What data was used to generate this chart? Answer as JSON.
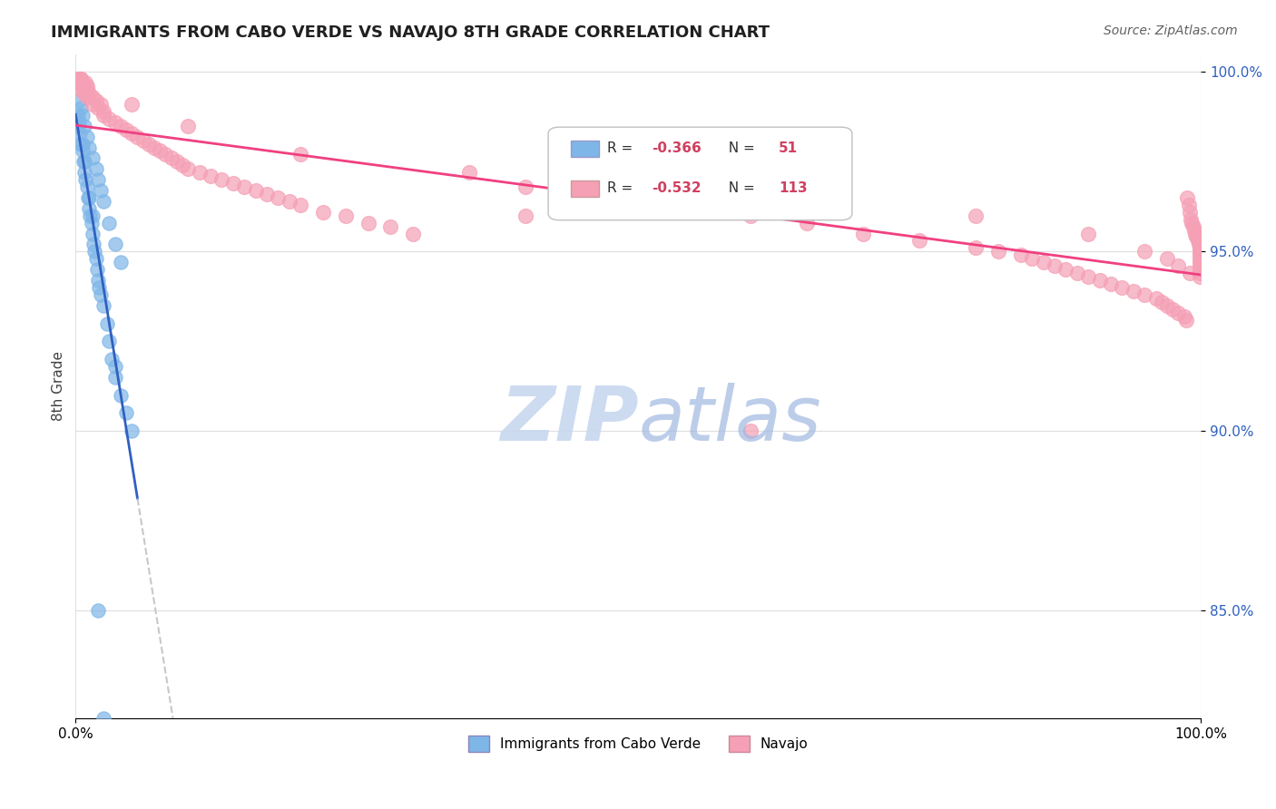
{
  "title": "IMMIGRANTS FROM CABO VERDE VS NAVAJO 8TH GRADE CORRELATION CHART",
  "source": "Source: ZipAtlas.com",
  "xlabel": "",
  "ylabel": "8th Grade",
  "xmin": 0.0,
  "xmax": 1.0,
  "ymin": 0.82,
  "ymax": 1.005,
  "yticks": [
    0.85,
    0.9,
    0.95,
    1.0
  ],
  "ytick_labels": [
    "85.0%",
    "90.0%",
    "95.0%",
    "100.0%"
  ],
  "xtick_labels": [
    "0.0%",
    "100.0%"
  ],
  "legend_r1": "R = -0.366",
  "legend_n1": "N =  51",
  "legend_r2": "R = -0.532",
  "legend_n2": "N = 113",
  "color_blue": "#7EB6E8",
  "color_pink": "#F5A0B5",
  "line_blue": "#3060C0",
  "line_pink": "#F04080",
  "line_dash": "#C8C8C8",
  "watermark": "ZIPatlas",
  "watermark_color": "#C8D8F0",
  "cabo_verde_x": [
    0.001,
    0.002,
    0.003,
    0.004,
    0.005,
    0.006,
    0.007,
    0.008,
    0.009,
    0.01,
    0.011,
    0.012,
    0.013,
    0.014,
    0.015,
    0.016,
    0.017,
    0.018,
    0.019,
    0.02,
    0.021,
    0.022,
    0.025,
    0.028,
    0.03,
    0.032,
    0.035,
    0.04,
    0.045,
    0.05,
    0.003,
    0.005,
    0.006,
    0.008,
    0.01,
    0.012,
    0.015,
    0.018,
    0.02,
    0.022,
    0.025,
    0.03,
    0.035,
    0.04,
    0.015,
    0.012,
    0.008,
    0.006,
    0.035,
    0.02,
    0.025
  ],
  "cabo_verde_y": [
    0.985,
    0.988,
    0.986,
    0.983,
    0.98,
    0.978,
    0.975,
    0.972,
    0.97,
    0.968,
    0.965,
    0.962,
    0.96,
    0.958,
    0.955,
    0.952,
    0.95,
    0.948,
    0.945,
    0.942,
    0.94,
    0.938,
    0.935,
    0.93,
    0.925,
    0.92,
    0.915,
    0.91,
    0.905,
    0.9,
    0.992,
    0.99,
    0.988,
    0.985,
    0.982,
    0.979,
    0.976,
    0.973,
    0.97,
    0.967,
    0.964,
    0.958,
    0.952,
    0.947,
    0.96,
    0.965,
    0.975,
    0.98,
    0.918,
    0.85,
    0.82
  ],
  "navajo_x": [
    0.001,
    0.002,
    0.003,
    0.003,
    0.005,
    0.005,
    0.006,
    0.007,
    0.008,
    0.009,
    0.01,
    0.01,
    0.012,
    0.015,
    0.015,
    0.018,
    0.02,
    0.022,
    0.025,
    0.025,
    0.03,
    0.035,
    0.04,
    0.045,
    0.05,
    0.055,
    0.06,
    0.065,
    0.07,
    0.075,
    0.08,
    0.085,
    0.09,
    0.095,
    0.1,
    0.11,
    0.12,
    0.13,
    0.14,
    0.15,
    0.16,
    0.17,
    0.18,
    0.19,
    0.2,
    0.22,
    0.24,
    0.26,
    0.28,
    0.3,
    0.35,
    0.4,
    0.45,
    0.5,
    0.55,
    0.6,
    0.65,
    0.7,
    0.75,
    0.8,
    0.82,
    0.84,
    0.85,
    0.86,
    0.87,
    0.88,
    0.89,
    0.9,
    0.91,
    0.92,
    0.93,
    0.94,
    0.95,
    0.96,
    0.965,
    0.97,
    0.975,
    0.98,
    0.985,
    0.987,
    0.988,
    0.989,
    0.99,
    0.991,
    0.992,
    0.993,
    0.994,
    0.995,
    0.996,
    0.997,
    0.998,
    0.999,
    0.999,
    0.999,
    0.999,
    0.999,
    0.999,
    0.999,
    0.999,
    0.999,
    0.005,
    0.01,
    0.05,
    0.1,
    0.2,
    0.4,
    0.6,
    0.8,
    0.9,
    0.95,
    0.97,
    0.98,
    0.99
  ],
  "navajo_y": [
    0.998,
    0.997,
    0.998,
    0.996,
    0.998,
    0.995,
    0.997,
    0.996,
    0.994,
    0.997,
    0.995,
    0.993,
    0.994,
    0.993,
    0.991,
    0.992,
    0.99,
    0.991,
    0.988,
    0.989,
    0.987,
    0.986,
    0.985,
    0.984,
    0.983,
    0.982,
    0.981,
    0.98,
    0.979,
    0.978,
    0.977,
    0.976,
    0.975,
    0.974,
    0.973,
    0.972,
    0.971,
    0.97,
    0.969,
    0.968,
    0.967,
    0.966,
    0.965,
    0.964,
    0.963,
    0.961,
    0.96,
    0.958,
    0.957,
    0.955,
    0.972,
    0.968,
    0.966,
    0.964,
    0.962,
    0.96,
    0.958,
    0.955,
    0.953,
    0.951,
    0.95,
    0.949,
    0.948,
    0.947,
    0.946,
    0.945,
    0.944,
    0.943,
    0.942,
    0.941,
    0.94,
    0.939,
    0.938,
    0.937,
    0.936,
    0.935,
    0.934,
    0.933,
    0.932,
    0.931,
    0.965,
    0.963,
    0.961,
    0.959,
    0.958,
    0.957,
    0.956,
    0.955,
    0.954,
    0.953,
    0.952,
    0.951,
    0.95,
    0.949,
    0.948,
    0.947,
    0.946,
    0.945,
    0.944,
    0.943,
    0.998,
    0.996,
    0.991,
    0.985,
    0.977,
    0.96,
    0.9,
    0.96,
    0.955,
    0.95,
    0.948,
    0.946,
    0.944
  ]
}
